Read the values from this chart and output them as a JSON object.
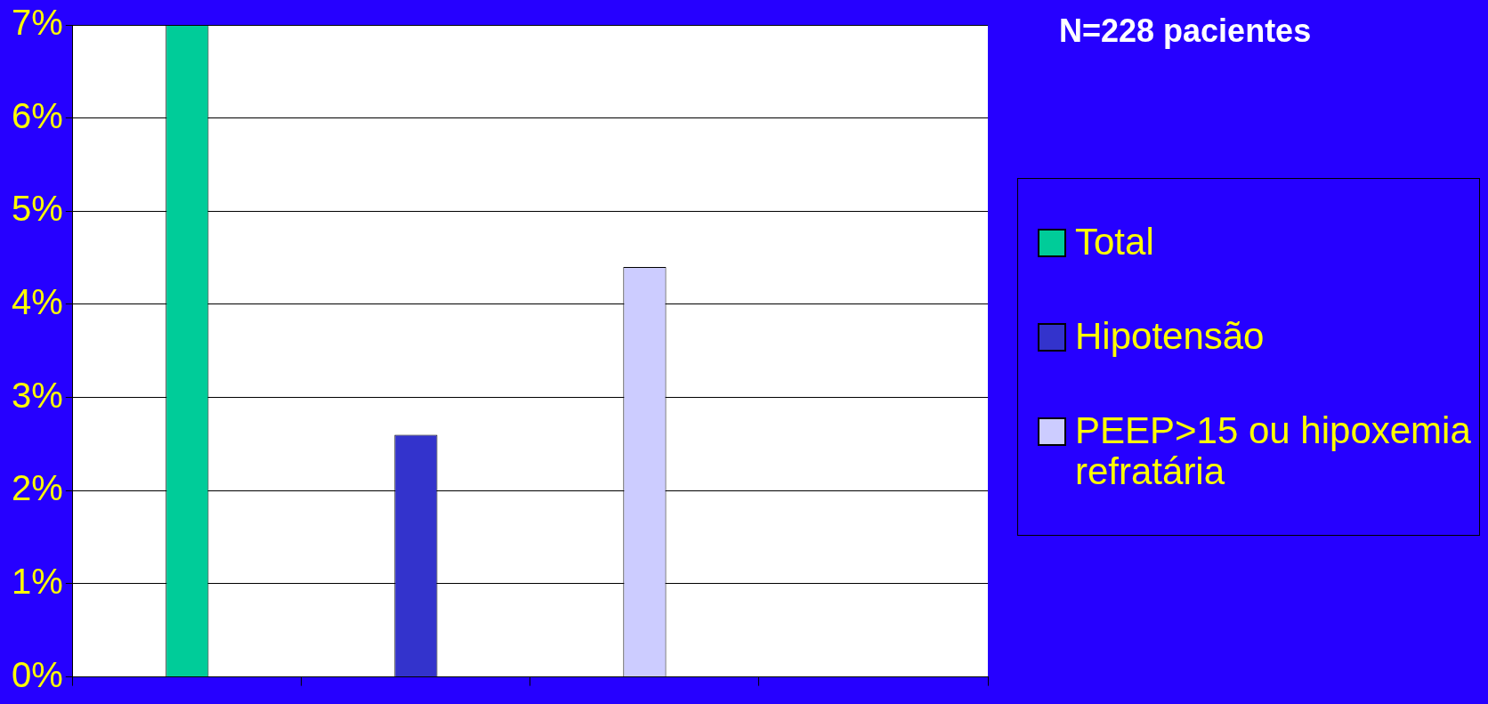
{
  "chart_data": {
    "type": "bar",
    "categories": [
      null,
      null,
      null,
      null
    ],
    "series": [
      {
        "name": "Total",
        "color": "#00cc99",
        "values": [
          7,
          null,
          null,
          null
        ]
      },
      {
        "name": "Hipotensão",
        "color": "#3333cc",
        "values": [
          null,
          2.6,
          null,
          null
        ]
      },
      {
        "name": "PEEP>15 ou hipoxemia refratária",
        "color": "#ccccff",
        "values": [
          null,
          null,
          4.4,
          null
        ]
      }
    ],
    "ylim": [
      0,
      7
    ],
    "yticks": [
      {
        "value": 0,
        "label": "0%"
      },
      {
        "value": 1,
        "label": "1%"
      },
      {
        "value": 2,
        "label": "2%"
      },
      {
        "value": 3,
        "label": "3%"
      },
      {
        "value": 4,
        "label": "4%"
      },
      {
        "value": 5,
        "label": "5%"
      },
      {
        "value": 6,
        "label": "6%"
      },
      {
        "value": 7,
        "label": "7%"
      }
    ],
    "grid": "y",
    "legend": "right",
    "annotations": [
      "N=228 pacientes"
    ]
  }
}
